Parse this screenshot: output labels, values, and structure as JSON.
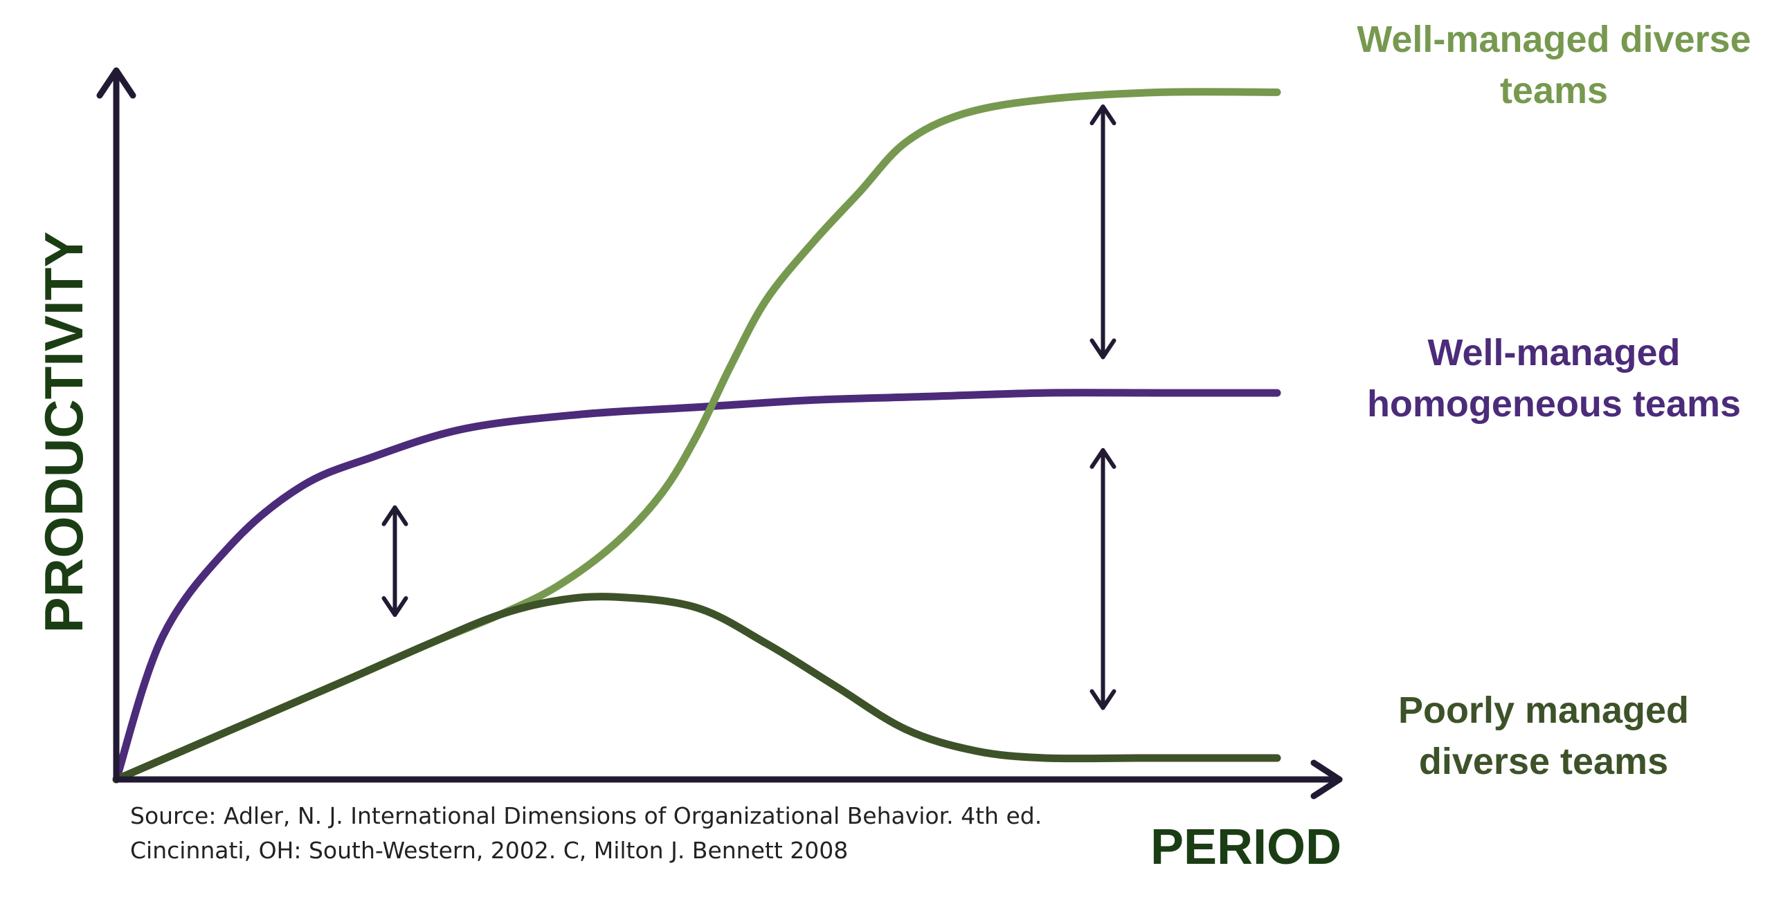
{
  "chart_data": {
    "type": "line",
    "title": "",
    "xlabel": "PERIOD",
    "ylabel": "PRODUCTIVITY",
    "xlim": [
      0,
      100
    ],
    "ylim": [
      0,
      100
    ],
    "grid": false,
    "legend": "right, inline labels",
    "series": [
      {
        "name": "Well-managed diverse teams",
        "label_lines": [
          "Well-managed diverse",
          "teams"
        ],
        "color": "#76994f",
        "points": [
          [
            0,
            0
          ],
          [
            10,
            7
          ],
          [
            20,
            14
          ],
          [
            27,
            19
          ],
          [
            33,
            23
          ],
          [
            38,
            27
          ],
          [
            43,
            33
          ],
          [
            47,
            40
          ],
          [
            50,
            48
          ],
          [
            53,
            58
          ],
          [
            56,
            67
          ],
          [
            60,
            75
          ],
          [
            64,
            82
          ],
          [
            68,
            89
          ],
          [
            73,
            93
          ],
          [
            80,
            95
          ],
          [
            90,
            96
          ],
          [
            100,
            96
          ]
        ]
      },
      {
        "name": "Well-managed homogeneous teams",
        "label_lines": [
          "Well-managed",
          "homogeneous teams"
        ],
        "color": "#4b2b7a",
        "points": [
          [
            0,
            0
          ],
          [
            4,
            20
          ],
          [
            10,
            33
          ],
          [
            16,
            41
          ],
          [
            22,
            45
          ],
          [
            30,
            49
          ],
          [
            40,
            51
          ],
          [
            50,
            52
          ],
          [
            60,
            53
          ],
          [
            70,
            53.5
          ],
          [
            80,
            54
          ],
          [
            90,
            54
          ],
          [
            100,
            54
          ]
        ]
      },
      {
        "name": "Poorly managed diverse teams",
        "label_lines": [
          "Poorly managed",
          "diverse teams"
        ],
        "color": "#3d5228",
        "points": [
          [
            0,
            0
          ],
          [
            10,
            7
          ],
          [
            20,
            14
          ],
          [
            27,
            19
          ],
          [
            33,
            23
          ],
          [
            38,
            25
          ],
          [
            43,
            25.5
          ],
          [
            50,
            24
          ],
          [
            56,
            19
          ],
          [
            62,
            13
          ],
          [
            68,
            7
          ],
          [
            74,
            4
          ],
          [
            80,
            3
          ],
          [
            88,
            3
          ],
          [
            94,
            3
          ],
          [
            100,
            3
          ]
        ]
      }
    ],
    "annotations": [
      {
        "type": "double-arrow",
        "x": 24,
        "y_from": 23,
        "y_to": 38
      },
      {
        "type": "double-arrow",
        "x": 85,
        "y_from": 59,
        "y_to": 94
      },
      {
        "type": "double-arrow",
        "x": 85,
        "y_from": 10,
        "y_to": 46
      }
    ],
    "source": [
      "Source: Adler, N. J. International Dimensions of Organizational Behavior. 4th ed.",
      "Cincinnati, OH: South-Western, 2002. C, Milton J. Bennett 2008"
    ]
  },
  "colors": {
    "axis": "#221a33",
    "arrow": "#221a33",
    "xlabel": "#1b3d14",
    "ylabel": "#1b3d14"
  }
}
